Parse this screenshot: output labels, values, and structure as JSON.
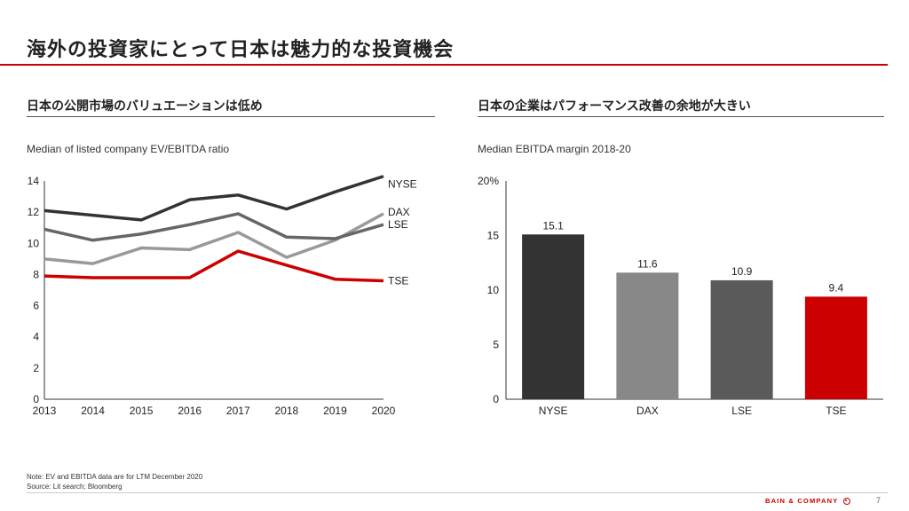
{
  "slide": {
    "title": "海外の投資家にとって日本は魅力的な投資機会",
    "footnote_line1": "Note: EV and EBITDA  data are for LTM December 2020",
    "footnote_line2": "Source: Lit search; Bloomberg",
    "brand": "BAIN & COMPANY",
    "page_number": "7"
  },
  "left_panel": {
    "heading": "日本の公開市場のバリュエーションは低め",
    "subtitle": "Median of listed company EV/EBITDA ratio"
  },
  "right_panel": {
    "heading": "日本の企業はパフォーマンス改善の余地が大きい",
    "subtitle": "Median EBITDA margin 2018-20"
  },
  "chart_data": [
    {
      "type": "line",
      "title": "Median of listed company EV/EBITDA ratio",
      "x": [
        "2013",
        "2014",
        "2015",
        "2016",
        "2017",
        "2018",
        "2019",
        "2020"
      ],
      "ylim": [
        0,
        14
      ],
      "yticks": [
        "0",
        "2",
        "4",
        "6",
        "8",
        "10",
        "12",
        "14"
      ],
      "grid": false,
      "series": [
        {
          "name": "NYSE",
          "color": "#333333",
          "values": [
            12.1,
            11.8,
            11.5,
            12.8,
            13.1,
            12.2,
            13.3,
            14.3
          ]
        },
        {
          "name": "DAX",
          "color": "#999999",
          "values": [
            9.0,
            8.7,
            9.7,
            9.6,
            10.7,
            9.1,
            10.2,
            11.9
          ]
        },
        {
          "name": "LSE",
          "color": "#666666",
          "values": [
            10.9,
            10.2,
            10.6,
            11.2,
            11.9,
            10.4,
            10.3,
            11.2
          ]
        },
        {
          "name": "TSE",
          "color": "#cc0000",
          "values": [
            7.9,
            7.8,
            7.8,
            7.8,
            9.5,
            8.6,
            7.7,
            7.6
          ]
        }
      ]
    },
    {
      "type": "bar",
      "title": "Median EBITDA margin 2018-20",
      "categories": [
        "NYSE",
        "DAX",
        "LSE",
        "TSE"
      ],
      "values": [
        15.1,
        11.6,
        10.9,
        9.4
      ],
      "value_labels": [
        "15.1",
        "11.6",
        "10.9",
        "9.4"
      ],
      "colors": [
        "#333333",
        "#888888",
        "#5a5a5a",
        "#cc0000"
      ],
      "ylim": [
        0,
        20
      ],
      "yticks": [
        "0",
        "5",
        "10",
        "15",
        "20%"
      ],
      "grid": false
    }
  ]
}
